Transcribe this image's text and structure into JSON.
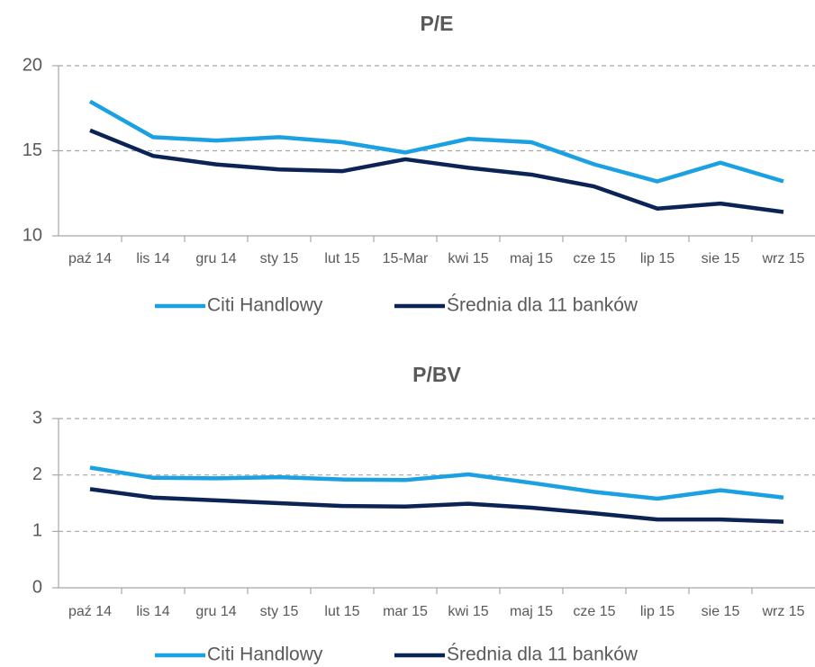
{
  "chart_data": [
    {
      "type": "line",
      "title": "P/E",
      "categories": [
        "paź 14",
        "lis 14",
        "gru 14",
        "sty 15",
        "lut 15",
        "15-Mar",
        "kwi 15",
        "maj 15",
        "cze 15",
        "lip 15",
        "sie 15",
        "wrz 15"
      ],
      "series": [
        {
          "name": "Citi Handlowy",
          "color": "#1ba1e2",
          "values": [
            17.9,
            15.8,
            15.6,
            15.8,
            15.5,
            14.9,
            15.7,
            15.5,
            14.2,
            13.2,
            14.3,
            13.2
          ]
        },
        {
          "name": "Średnia dla 11 banków",
          "color": "#0c2356",
          "values": [
            16.2,
            14.7,
            14.2,
            13.9,
            13.8,
            14.5,
            14.0,
            13.6,
            12.9,
            11.6,
            11.9,
            11.4
          ]
        }
      ],
      "ylim": [
        10,
        20
      ],
      "yticks": [
        10,
        15,
        20
      ],
      "grid": true,
      "legend": "bottom"
    },
    {
      "type": "line",
      "title": "P/BV",
      "categories": [
        "paź 14",
        "lis 14",
        "gru 14",
        "sty 15",
        "lut 15",
        "mar 15",
        "kwi 15",
        "maj 15",
        "cze 15",
        "lip 15",
        "sie 15",
        "wrz 15"
      ],
      "series": [
        {
          "name": "Citi Handlowy",
          "color": "#1ba1e2",
          "values": [
            2.13,
            1.95,
            1.94,
            1.96,
            1.92,
            1.91,
            2.01,
            1.86,
            1.7,
            1.58,
            1.73,
            1.6
          ]
        },
        {
          "name": "Średnia dla 11 banków",
          "color": "#0c2356",
          "values": [
            1.75,
            1.6,
            1.55,
            1.5,
            1.45,
            1.44,
            1.49,
            1.42,
            1.32,
            1.21,
            1.21,
            1.17
          ]
        }
      ],
      "ylim": [
        0,
        3
      ],
      "yticks": [
        0,
        1,
        2,
        3
      ],
      "grid": true,
      "legend": "bottom"
    }
  ]
}
